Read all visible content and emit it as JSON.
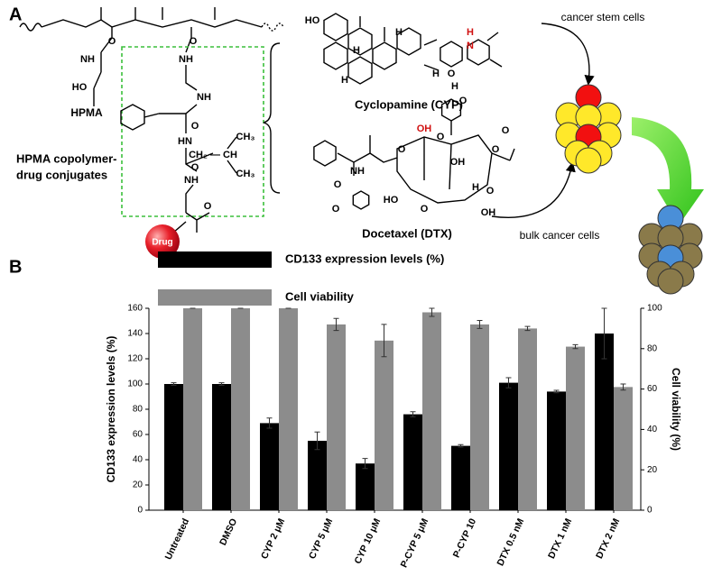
{
  "panel_a": {
    "label": "A",
    "hpma": "HPMA",
    "conjugate_line1": "HPMA copolymer-",
    "conjugate_line2": "drug conjugates",
    "drug": "Drug",
    "cyp": "Cyclopamine (CYP)",
    "dtx": "Docetaxel (DTX)",
    "stem": "cancer stem cells",
    "bulk": "bulk cancer cells",
    "atoms": [
      "O",
      "NH",
      "HO",
      "O",
      "NH",
      "NH",
      "O",
      "HN",
      "CH₃",
      "CH₂ — CH",
      "CH₃",
      "O",
      "NH",
      "O",
      "HO",
      "H",
      "H",
      "H",
      "H",
      "N",
      "H",
      "O",
      "H",
      "OH",
      "O",
      "O",
      "OH",
      "O",
      "O",
      "O",
      "H",
      "O",
      "HO",
      "O",
      "OH",
      "NH",
      "O",
      "O"
    ]
  },
  "panel_b_label": "B",
  "chart_data": {
    "type": "bar",
    "categories": [
      "Untreated",
      "DMSO",
      "CYP 2 μM",
      "CYP 5 μM",
      "CYP 10 μM",
      "P-CYP 5 μM",
      "P-CYP 10",
      "DTX 0.5 nM",
      "DTX 1 nM",
      "DTX 2 nM"
    ],
    "series": [
      {
        "name": "CD133 expression levels (%)",
        "color": "#000000",
        "values": [
          100,
          100,
          69,
          55,
          37,
          76,
          51,
          101,
          94,
          140
        ],
        "errors": [
          1,
          1,
          4,
          7,
          4,
          2,
          1,
          4,
          1,
          20
        ]
      },
      {
        "name": "Cell viability",
        "color": "#8c8c8c",
        "axis": "y2",
        "values": [
          100,
          100,
          100,
          92,
          84,
          98,
          92,
          90,
          81,
          61
        ],
        "errors": [
          0,
          0,
          0,
          3,
          8,
          2,
          2,
          1,
          1,
          1.5
        ]
      }
    ],
    "ylabel": "CD133 expression levels (%)",
    "y2label": "Cell viability (%)",
    "ylim": [
      0,
      160
    ],
    "yticks": [
      0,
      20,
      40,
      60,
      80,
      100,
      120,
      140,
      160
    ],
    "y2lim": [
      0,
      100
    ],
    "y2ticks": [
      0,
      20,
      40,
      60,
      80,
      100
    ]
  }
}
